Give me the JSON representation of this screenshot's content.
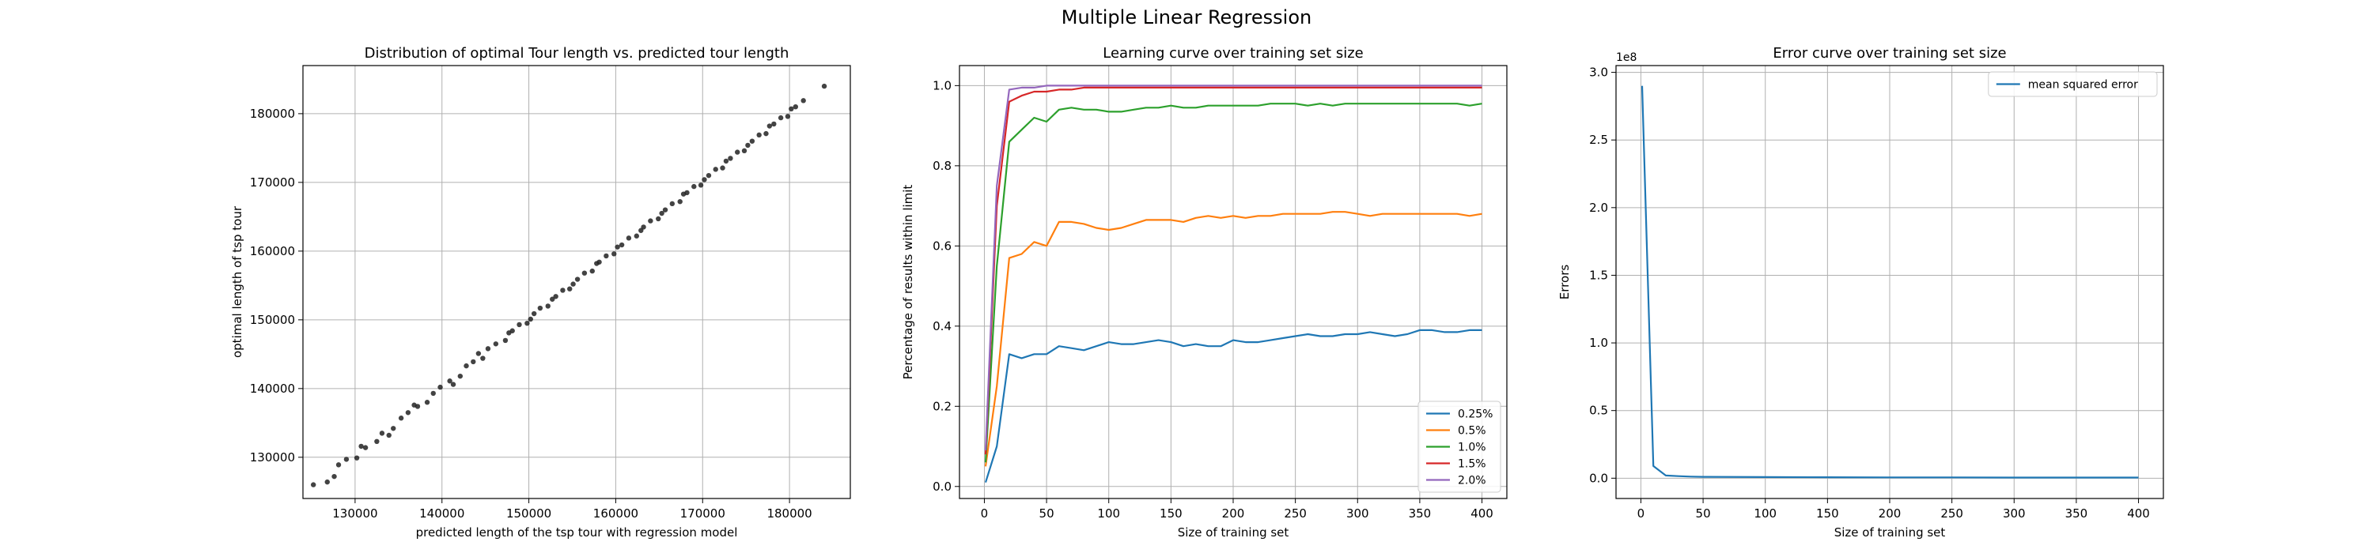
{
  "figure": {
    "title": "Multiple Linear Regression"
  },
  "chart_data": [
    {
      "type": "scatter",
      "title": "Distribution of optimal Tour length vs. predicted tour length",
      "xlabel": "predicted length of the tsp tour with regression model",
      "ylabel": "optimal length of tsp tour",
      "xlim": [
        124000,
        187000
      ],
      "ylim": [
        124000,
        187000
      ],
      "xticks": [
        130000,
        140000,
        150000,
        160000,
        170000,
        180000
      ],
      "yticks": [
        130000,
        140000,
        150000,
        160000,
        170000,
        180000
      ],
      "grid": true,
      "color": "#222222",
      "points": [
        [
          125200,
          126000
        ],
        [
          126800,
          126400
        ],
        [
          128100,
          128900
        ],
        [
          129000,
          129700
        ],
        [
          130200,
          129900
        ],
        [
          131200,
          131400
        ],
        [
          132500,
          132300
        ],
        [
          133100,
          133500
        ],
        [
          134400,
          134200
        ],
        [
          135300,
          135700
        ],
        [
          136100,
          136500
        ],
        [
          137200,
          137400
        ],
        [
          138300,
          138000
        ],
        [
          139000,
          139300
        ],
        [
          139800,
          140200
        ],
        [
          140900,
          141100
        ],
        [
          142100,
          141800
        ],
        [
          142800,
          143300
        ],
        [
          143600,
          143900
        ],
        [
          144700,
          144400
        ],
        [
          145300,
          145800
        ],
        [
          146200,
          146500
        ],
        [
          147300,
          147000
        ],
        [
          148100,
          148400
        ],
        [
          148900,
          149300
        ],
        [
          149800,
          149500
        ],
        [
          150600,
          150900
        ],
        [
          151300,
          151700
        ],
        [
          152200,
          152000
        ],
        [
          153100,
          153400
        ],
        [
          153900,
          154300
        ],
        [
          154700,
          154500
        ],
        [
          155600,
          155900
        ],
        [
          156400,
          156800
        ],
        [
          157300,
          157100
        ],
        [
          158100,
          158400
        ],
        [
          158900,
          159300
        ],
        [
          159800,
          159600
        ],
        [
          160700,
          160900
        ],
        [
          161500,
          161900
        ],
        [
          162400,
          162200
        ],
        [
          163200,
          163500
        ],
        [
          164000,
          164400
        ],
        [
          164900,
          164700
        ],
        [
          165700,
          166000
        ],
        [
          166500,
          166900
        ],
        [
          167400,
          167200
        ],
        [
          168200,
          168500
        ],
        [
          169000,
          169400
        ],
        [
          169800,
          169600
        ],
        [
          170700,
          171000
        ],
        [
          171500,
          171900
        ],
        [
          172300,
          172100
        ],
        [
          173200,
          173500
        ],
        [
          174000,
          174400
        ],
        [
          174800,
          174600
        ],
        [
          175700,
          176000
        ],
        [
          176500,
          176900
        ],
        [
          177300,
          177100
        ],
        [
          178200,
          178500
        ],
        [
          179000,
          179400
        ],
        [
          179800,
          179600
        ],
        [
          180700,
          181000
        ],
        [
          181600,
          181900
        ],
        [
          184000,
          184000
        ],
        [
          127600,
          127200
        ],
        [
          130700,
          131600
        ],
        [
          133900,
          133200
        ],
        [
          136800,
          137600
        ],
        [
          141300,
          140600
        ],
        [
          144200,
          145100
        ],
        [
          147700,
          148100
        ],
        [
          150200,
          150100
        ],
        [
          152700,
          153000
        ],
        [
          155100,
          155200
        ],
        [
          157800,
          158200
        ],
        [
          160200,
          160600
        ],
        [
          162900,
          163000
        ],
        [
          165300,
          165500
        ],
        [
          167800,
          168300
        ],
        [
          170200,
          170400
        ],
        [
          172700,
          173100
        ],
        [
          175200,
          175400
        ],
        [
          177700,
          178200
        ],
        [
          180200,
          180700
        ]
      ]
    },
    {
      "type": "line",
      "title": "Learning curve over training set size",
      "xlabel": "Size of training set",
      "ylabel": "Percentage of results within limit",
      "xlim": [
        -20,
        420
      ],
      "ylim": [
        -0.03,
        1.05
      ],
      "xticks": [
        0,
        50,
        100,
        150,
        200,
        250,
        300,
        350,
        400
      ],
      "yticks": [
        0.0,
        0.2,
        0.4,
        0.6,
        0.8,
        1.0
      ],
      "ytick_labels": [
        "0.0",
        "0.2",
        "0.4",
        "0.6",
        "0.8",
        "1.0"
      ],
      "grid": true,
      "legend_position": "bottom-right",
      "x": [
        1,
        10,
        20,
        30,
        40,
        50,
        60,
        70,
        80,
        90,
        100,
        110,
        120,
        130,
        140,
        150,
        160,
        170,
        180,
        190,
        200,
        210,
        220,
        230,
        240,
        250,
        260,
        270,
        280,
        290,
        300,
        310,
        320,
        330,
        340,
        350,
        360,
        370,
        380,
        390,
        400
      ],
      "series": [
        {
          "name": "0.25%",
          "color": "#1f77b4",
          "values": [
            0.01,
            0.1,
            0.33,
            0.32,
            0.33,
            0.33,
            0.35,
            0.345,
            0.34,
            0.35,
            0.36,
            0.355,
            0.355,
            0.36,
            0.365,
            0.36,
            0.35,
            0.355,
            0.35,
            0.35,
            0.365,
            0.36,
            0.36,
            0.365,
            0.37,
            0.375,
            0.38,
            0.375,
            0.375,
            0.38,
            0.38,
            0.385,
            0.38,
            0.375,
            0.38,
            0.39,
            0.39,
            0.385,
            0.385,
            0.39,
            0.39
          ]
        },
        {
          "name": "0.5%",
          "color": "#ff7f0e",
          "values": [
            0.05,
            0.25,
            0.57,
            0.58,
            0.61,
            0.6,
            0.66,
            0.66,
            0.655,
            0.645,
            0.64,
            0.645,
            0.655,
            0.665,
            0.665,
            0.665,
            0.66,
            0.67,
            0.675,
            0.67,
            0.675,
            0.67,
            0.675,
            0.675,
            0.68,
            0.68,
            0.68,
            0.68,
            0.685,
            0.685,
            0.68,
            0.675,
            0.68,
            0.68,
            0.68,
            0.68,
            0.68,
            0.68,
            0.68,
            0.675,
            0.68
          ]
        },
        {
          "name": "1.0%",
          "color": "#2ca02c",
          "values": [
            0.06,
            0.55,
            0.86,
            0.89,
            0.92,
            0.91,
            0.94,
            0.945,
            0.94,
            0.94,
            0.935,
            0.935,
            0.94,
            0.945,
            0.945,
            0.95,
            0.945,
            0.945,
            0.95,
            0.95,
            0.95,
            0.95,
            0.95,
            0.955,
            0.955,
            0.955,
            0.95,
            0.955,
            0.95,
            0.955,
            0.955,
            0.955,
            0.955,
            0.955,
            0.955,
            0.955,
            0.955,
            0.955,
            0.955,
            0.95,
            0.955
          ]
        },
        {
          "name": "1.5%",
          "color": "#d62728",
          "values": [
            0.08,
            0.7,
            0.96,
            0.975,
            0.985,
            0.985,
            0.99,
            0.99,
            0.995,
            0.995,
            0.995,
            0.995,
            0.995,
            0.995,
            0.995,
            0.995,
            0.995,
            0.995,
            0.995,
            0.995,
            0.995,
            0.995,
            0.995,
            0.995,
            0.995,
            0.995,
            0.995,
            0.995,
            0.995,
            0.995,
            0.995,
            0.995,
            0.995,
            0.995,
            0.995,
            0.995,
            0.995,
            0.995,
            0.995,
            0.995,
            0.995
          ]
        },
        {
          "name": "2.0%",
          "color": "#9467bd",
          "values": [
            0.09,
            0.75,
            0.99,
            0.995,
            0.995,
            1.0,
            1.0,
            1.0,
            1.0,
            1.0,
            1.0,
            1.0,
            1.0,
            1.0,
            1.0,
            1.0,
            1.0,
            1.0,
            1.0,
            1.0,
            1.0,
            1.0,
            1.0,
            1.0,
            1.0,
            1.0,
            1.0,
            1.0,
            1.0,
            1.0,
            1.0,
            1.0,
            1.0,
            1.0,
            1.0,
            1.0,
            1.0,
            1.0,
            1.0,
            1.0,
            1.0
          ]
        }
      ]
    },
    {
      "type": "line",
      "title": "Error curve over training set size",
      "xlabel": "Size of training set",
      "ylabel": "Errors",
      "y_offset_label": "1e8",
      "xlim": [
        -20,
        420
      ],
      "ylim": [
        -0.15,
        3.05
      ],
      "xticks": [
        0,
        50,
        100,
        150,
        200,
        250,
        300,
        350,
        400
      ],
      "yticks": [
        0.0,
        0.5,
        1.0,
        1.5,
        2.0,
        2.5,
        3.0
      ],
      "ytick_labels": [
        "0.0",
        "0.5",
        "1.0",
        "1.5",
        "2.0",
        "2.5",
        "3.0"
      ],
      "grid": true,
      "legend_position": "top-right",
      "x": [
        1,
        10,
        20,
        30,
        40,
        50,
        100,
        150,
        200,
        250,
        300,
        350,
        400
      ],
      "series": [
        {
          "name": "mean squared error",
          "color": "#1f77b4",
          "values": [
            2.9,
            0.09,
            0.02,
            0.015,
            0.012,
            0.01,
            0.008,
            0.007,
            0.006,
            0.006,
            0.005,
            0.005,
            0.005
          ]
        }
      ]
    }
  ]
}
